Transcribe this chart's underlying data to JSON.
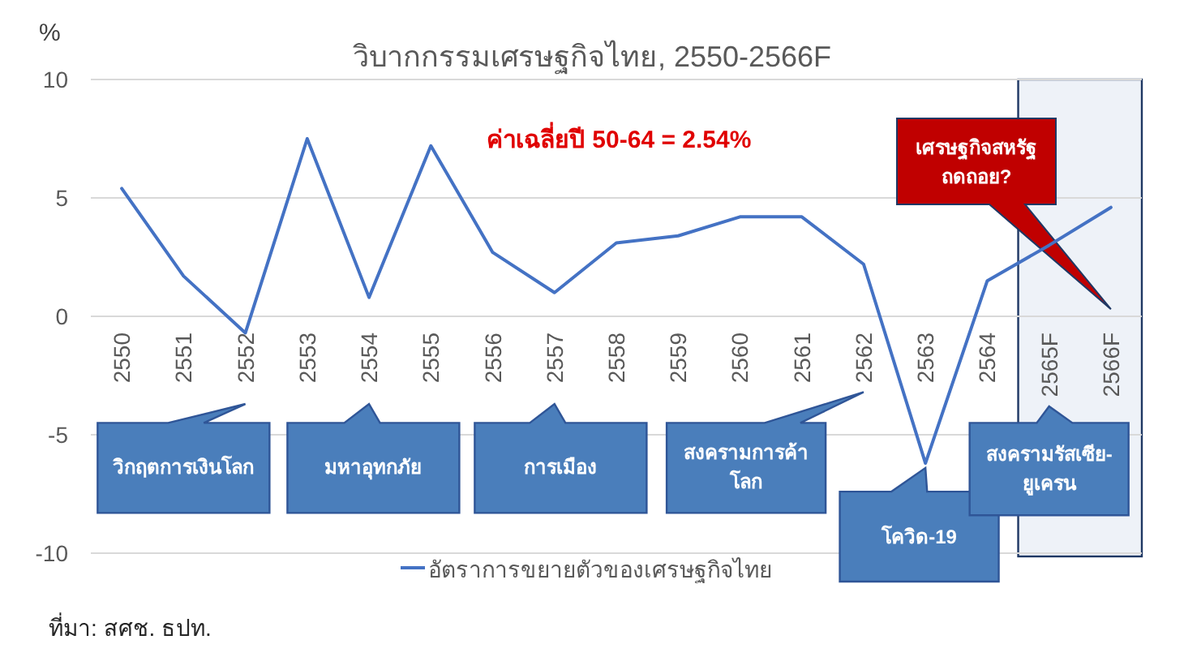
{
  "chart_data": {
    "type": "line",
    "title": "วิบากกรรมเศรษฐกิจไทย, 2550-2566F",
    "ylabel": "%",
    "categories": [
      "2550",
      "2551",
      "2552",
      "2553",
      "2554",
      "2555",
      "2556",
      "2557",
      "2558",
      "2559",
      "2560",
      "2561",
      "2562",
      "2563",
      "2564",
      "2565F",
      "2566F"
    ],
    "series": [
      {
        "name": "อัตราการขยายตัวของเศรษฐกิจไทย",
        "color": "#4472c4",
        "values": [
          5.4,
          1.7,
          -0.7,
          7.5,
          0.8,
          7.2,
          2.7,
          1.0,
          3.1,
          3.4,
          4.2,
          4.2,
          2.2,
          -6.2,
          1.5,
          3.0,
          4.6
        ]
      }
    ],
    "ylim": [
      -10,
      10
    ],
    "yticks": [
      -10,
      -5,
      0,
      5,
      10
    ],
    "grid": "y",
    "legend": "bottom",
    "marker": "none",
    "line_style": "solid",
    "bands": [
      {
        "axis": "x",
        "from": "2565F",
        "to": "2566F",
        "color": "#eef2f8"
      }
    ],
    "annotations": [
      "วิกฤตการเงินโลก",
      "มหาอุทกภัย",
      "การเมือง",
      "สงครามการค้าโลก",
      "โควิด-19",
      "สงครามรัสเซีย-ยูเครน",
      "เศรษฐกิจสหรัฐถดถอย?",
      "ค่าเฉลี่ยปี 50-64 = 2.54%",
      "ที่มา: สศช. ธปท."
    ]
  }
}
